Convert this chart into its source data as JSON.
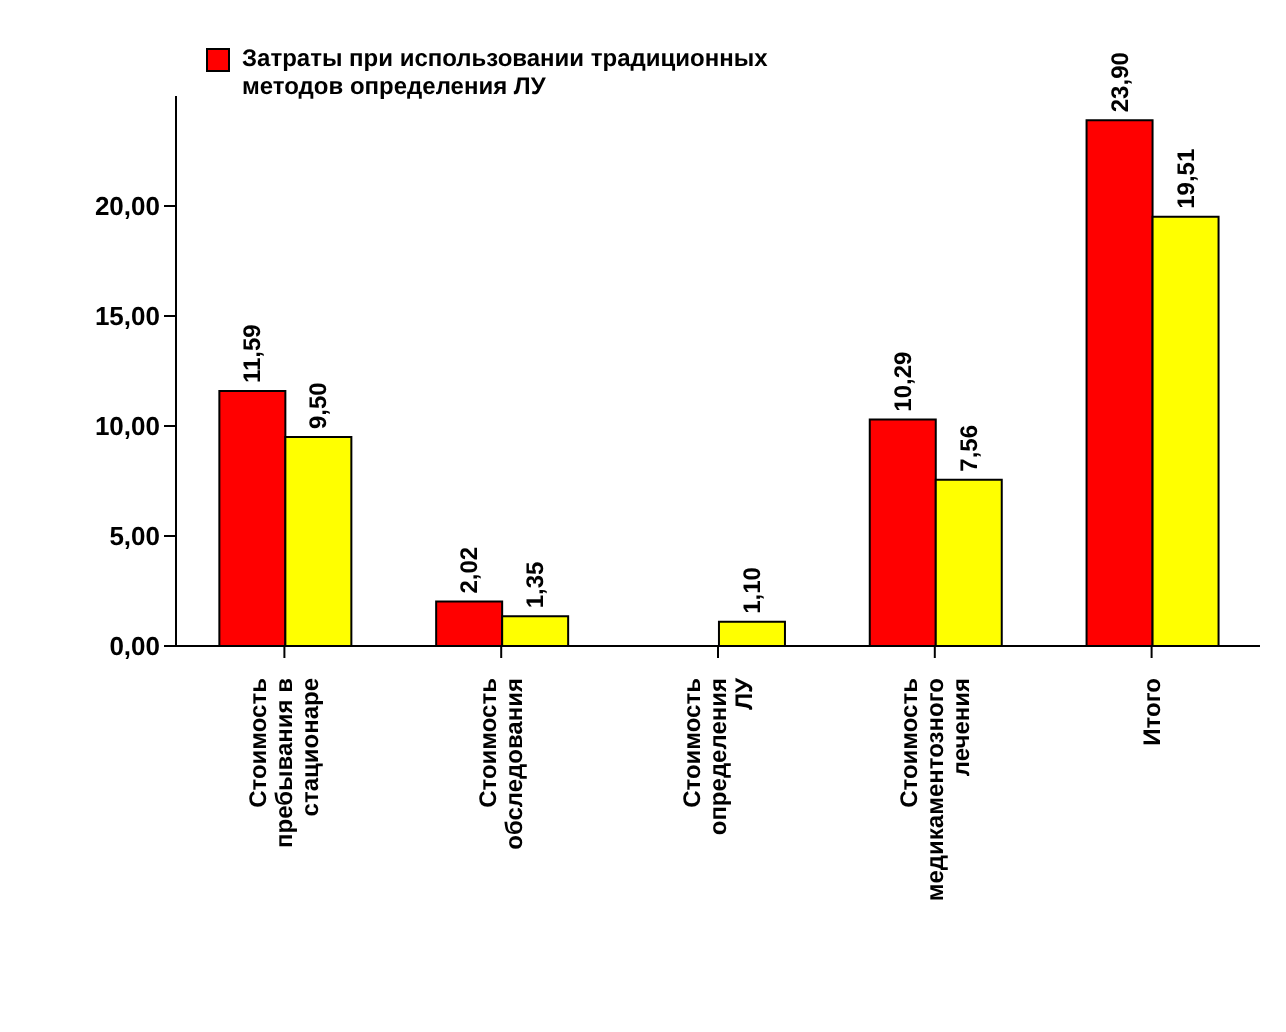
{
  "chart_data": {
    "type": "bar",
    "categories": [
      "Стоимость пребывания в стационаре",
      "Стоимость обследования",
      "Стоимость определения ЛУ",
      "Стоимость медикаментозного лечения",
      "Итого"
    ],
    "series": [
      {
        "name": "Затраты при использовании традиционных методов определения ЛУ",
        "color": "#ff0000",
        "values": [
          11.59,
          2.02,
          null,
          10.29,
          23.9
        ],
        "value_labels": [
          "11,59",
          "2,02",
          null,
          "10,29",
          "23,90"
        ]
      },
      {
        "color": "#ffff00",
        "values": [
          9.5,
          1.35,
          1.1,
          7.56,
          19.51
        ],
        "value_labels": [
          "9,50",
          "1,35",
          "1,10",
          "7,56",
          "19,51"
        ]
      }
    ],
    "ylim": [
      0,
      25
    ],
    "yticks": [
      {
        "value": 0,
        "label": "0,00"
      },
      {
        "value": 5,
        "label": "5,00"
      },
      {
        "value": 10,
        "label": "10,00"
      },
      {
        "value": 15,
        "label": "15,00"
      },
      {
        "value": 20,
        "label": "20,00"
      }
    ],
    "grid": false,
    "legend": "top left"
  }
}
